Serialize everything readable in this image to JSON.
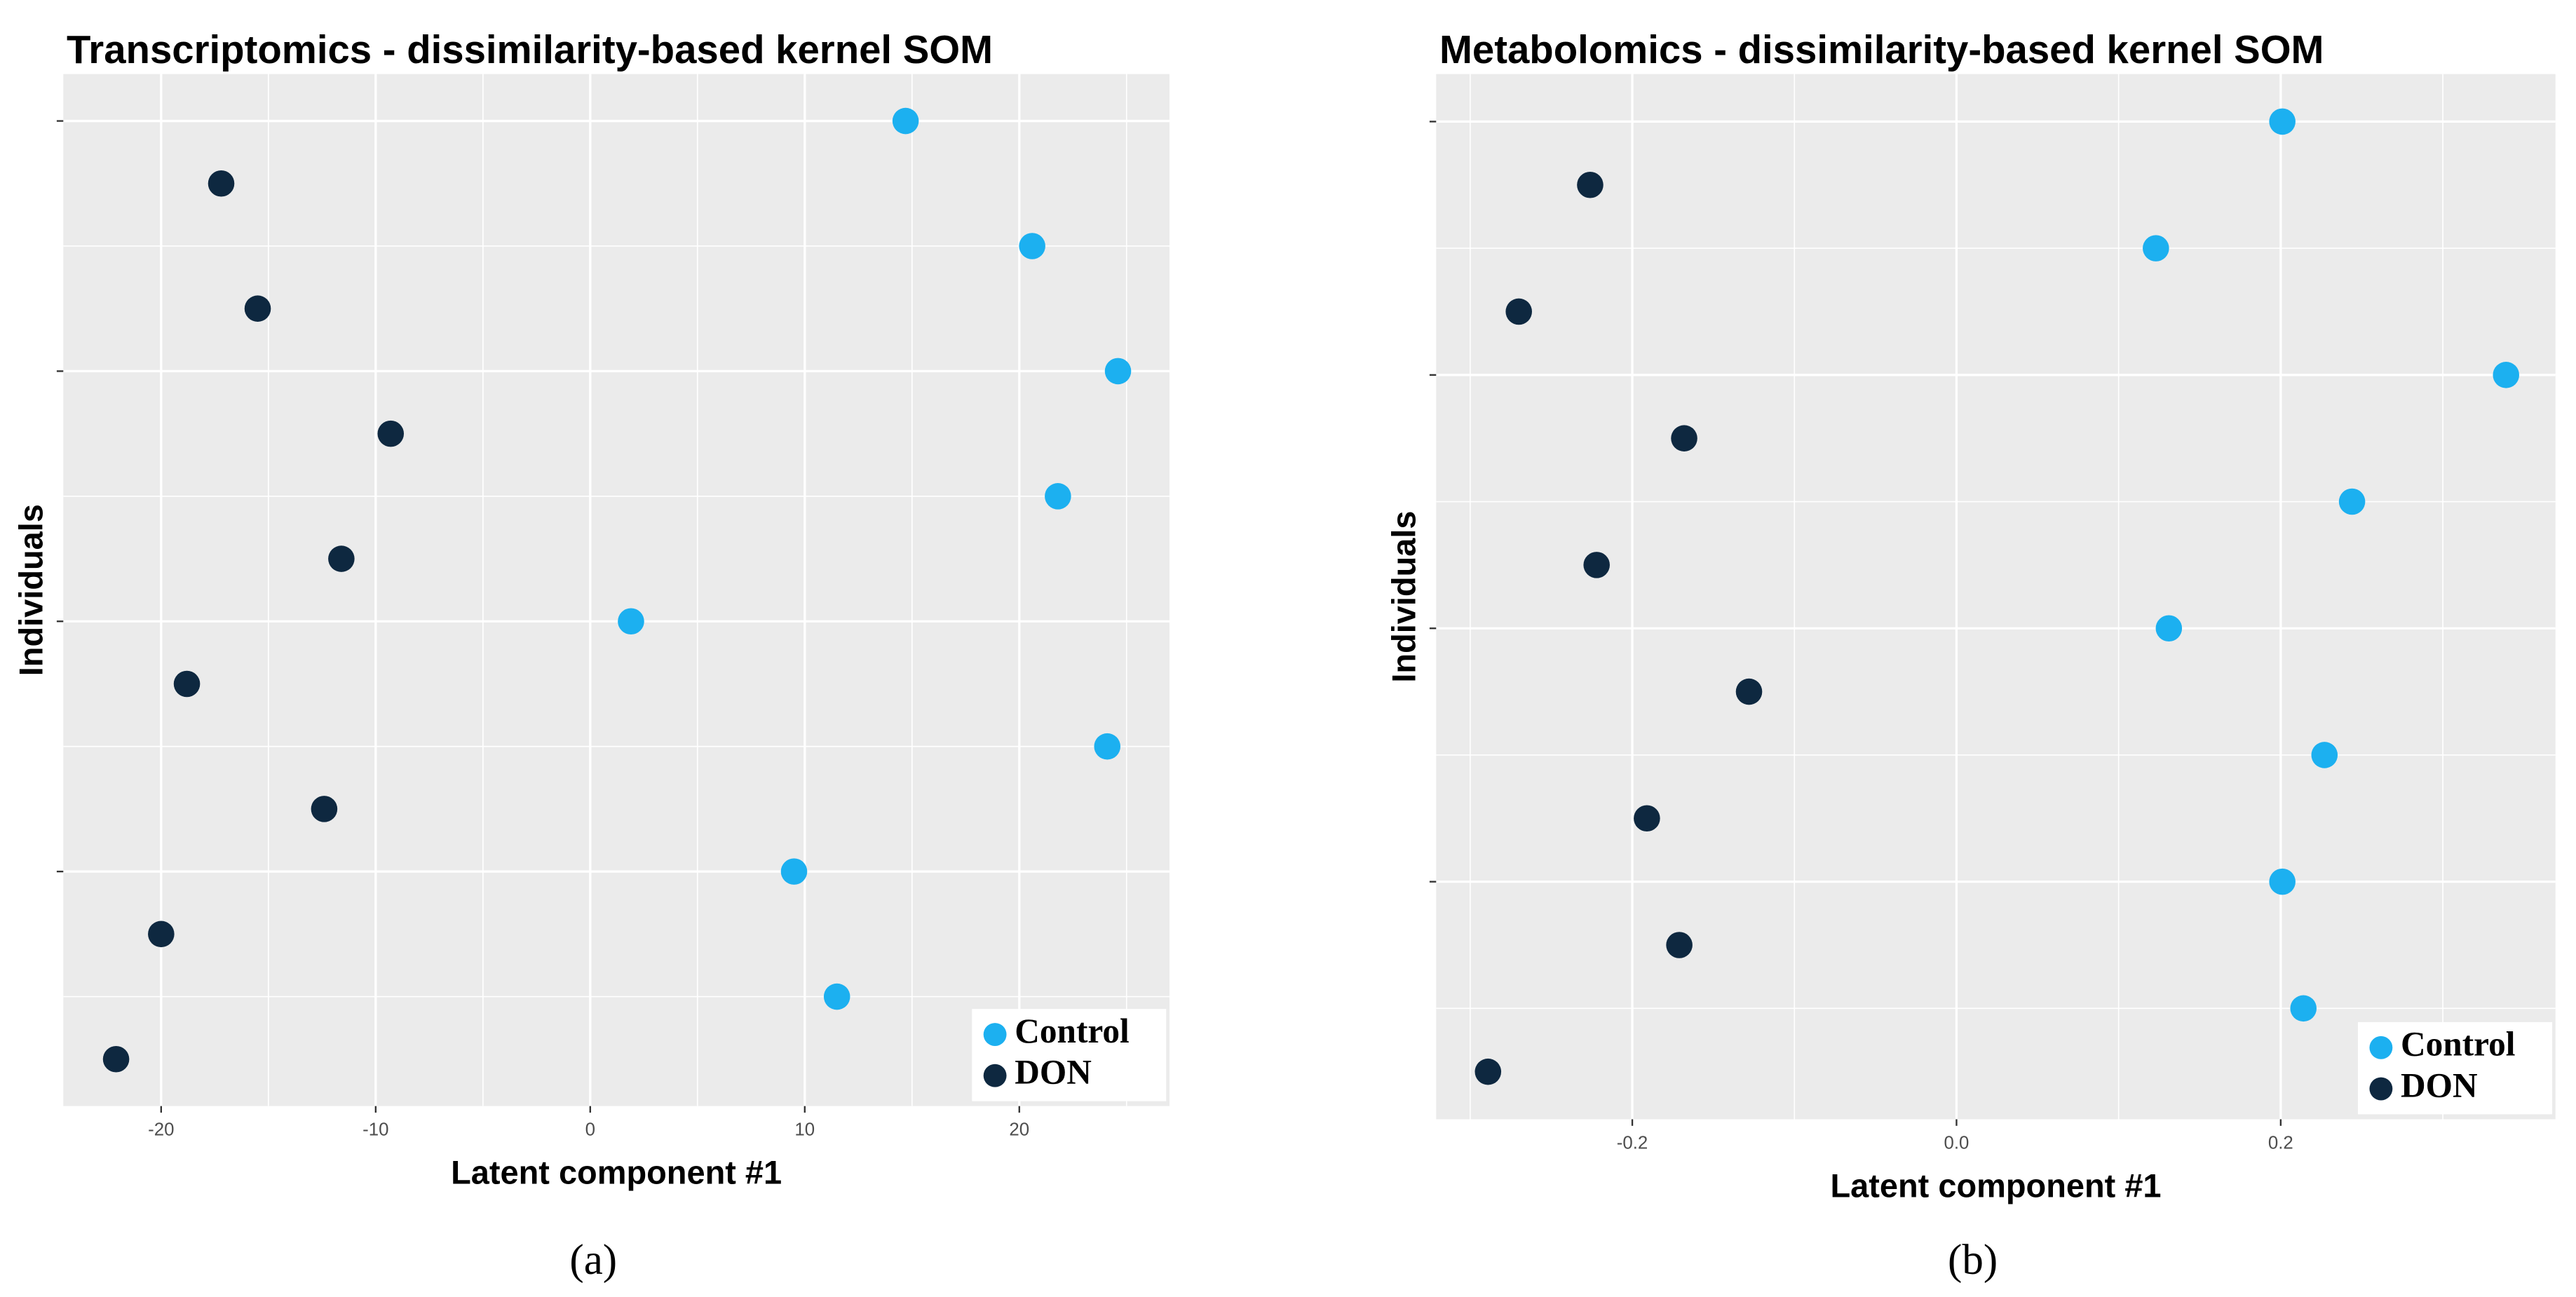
{
  "chart_data": [
    {
      "type": "scatter",
      "title": "Transcriptomics - dissimilarity-based kernel SOM",
      "x_label": "Latent component #1",
      "y_label": "Individuals",
      "caption": "(a)",
      "xlim": [
        -24.56,
        27.0
      ],
      "xticks": [
        -20,
        -10,
        0,
        10,
        20
      ],
      "ylim": [
        0.25,
        16.75
      ],
      "yticks": [
        4,
        8,
        12,
        16
      ],
      "grid": true,
      "legend": "bottom-right",
      "series": [
        {
          "name": "Control",
          "color": "#1cb0f0",
          "x": [
            14.7,
            20.6,
            24.6,
            21.8,
            1.9,
            24.1,
            9.5,
            11.5
          ],
          "values": [
            16,
            14,
            12,
            10,
            8,
            6,
            4,
            2
          ]
        },
        {
          "name": "DON",
          "color": "#0e2840",
          "x": [
            -17.2,
            -15.5,
            -9.3,
            -11.6,
            -18.8,
            -12.4,
            -20.0,
            -22.1
          ],
          "values": [
            15,
            13,
            11,
            9,
            7,
            5,
            3,
            1
          ]
        }
      ]
    },
    {
      "type": "scatter",
      "title": "Metabolomics - dissimilarity-based kernel SOM",
      "x_label": "Latent component #1",
      "y_label": "Individuals",
      "caption": "(b)",
      "xlim": [
        -0.321,
        0.3695
      ],
      "xticks": [
        {
          "value": -0.2,
          "label": "-0.2"
        },
        {
          "value": 0,
          "label": "0.0"
        },
        {
          "value": 0.2,
          "label": "0.2"
        }
      ],
      "ylim": [
        0.25,
        16.75
      ],
      "yticks": [
        4,
        8,
        12,
        16
      ],
      "grid": true,
      "legend": "bottom-right",
      "series": [
        {
          "name": "Control",
          "color": "#1cb0f0",
          "x": [
            0.201,
            0.123,
            0.339,
            0.244,
            0.131,
            0.227,
            0.201,
            0.214
          ],
          "values": [
            16,
            14,
            12,
            10,
            8,
            6,
            4,
            2
          ]
        },
        {
          "name": "DON",
          "color": "#0e2840",
          "x": [
            -0.226,
            -0.27,
            -0.168,
            -0.222,
            -0.128,
            -0.191,
            -0.171,
            -0.289
          ],
          "values": [
            15,
            13,
            11,
            9,
            7,
            5,
            3,
            1
          ]
        }
      ]
    }
  ]
}
